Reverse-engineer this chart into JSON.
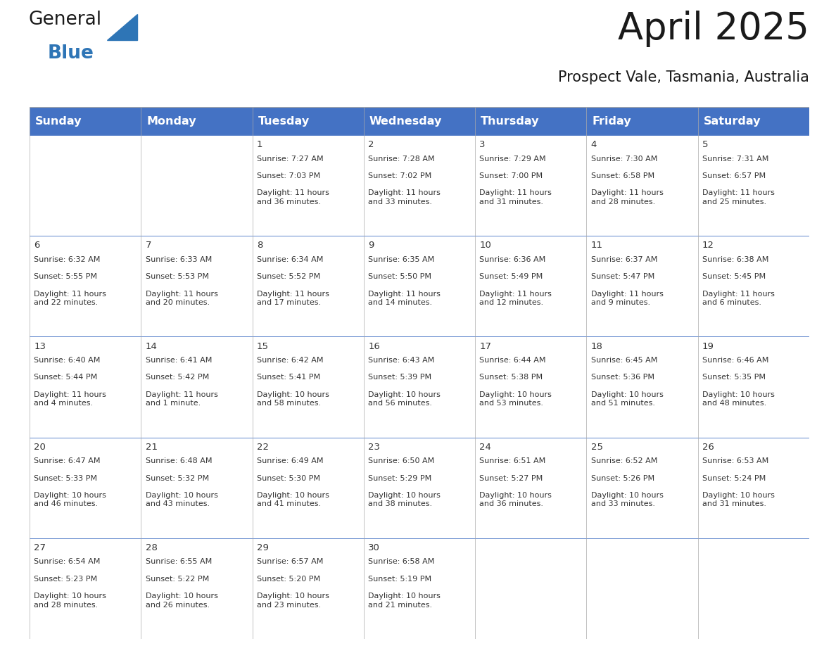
{
  "title": "April 2025",
  "subtitle": "Prospect Vale, Tasmania, Australia",
  "header_bg": "#4472C4",
  "header_text_color": "#FFFFFF",
  "cell_bg": "#FFFFFF",
  "cell_text_color": "#333333",
  "grid_color": "#AAAAAA",
  "days_of_week": [
    "Sunday",
    "Monday",
    "Tuesday",
    "Wednesday",
    "Thursday",
    "Friday",
    "Saturday"
  ],
  "triangle_color": "#2E75B6",
  "blue_text_color": "#2E75B6",
  "calendar_data": [
    [
      {
        "day": "",
        "sunrise": "",
        "sunset": "",
        "daylight": ""
      },
      {
        "day": "",
        "sunrise": "",
        "sunset": "",
        "daylight": ""
      },
      {
        "day": "1",
        "sunrise": "7:27 AM",
        "sunset": "7:03 PM",
        "daylight": "11 hours and 36 minutes."
      },
      {
        "day": "2",
        "sunrise": "7:28 AM",
        "sunset": "7:02 PM",
        "daylight": "11 hours and 33 minutes."
      },
      {
        "day": "3",
        "sunrise": "7:29 AM",
        "sunset": "7:00 PM",
        "daylight": "11 hours and 31 minutes."
      },
      {
        "day": "4",
        "sunrise": "7:30 AM",
        "sunset": "6:58 PM",
        "daylight": "11 hours and 28 minutes."
      },
      {
        "day": "5",
        "sunrise": "7:31 AM",
        "sunset": "6:57 PM",
        "daylight": "11 hours and 25 minutes."
      }
    ],
    [
      {
        "day": "6",
        "sunrise": "6:32 AM",
        "sunset": "5:55 PM",
        "daylight": "11 hours and 22 minutes."
      },
      {
        "day": "7",
        "sunrise": "6:33 AM",
        "sunset": "5:53 PM",
        "daylight": "11 hours and 20 minutes."
      },
      {
        "day": "8",
        "sunrise": "6:34 AM",
        "sunset": "5:52 PM",
        "daylight": "11 hours and 17 minutes."
      },
      {
        "day": "9",
        "sunrise": "6:35 AM",
        "sunset": "5:50 PM",
        "daylight": "11 hours and 14 minutes."
      },
      {
        "day": "10",
        "sunrise": "6:36 AM",
        "sunset": "5:49 PM",
        "daylight": "11 hours and 12 minutes."
      },
      {
        "day": "11",
        "sunrise": "6:37 AM",
        "sunset": "5:47 PM",
        "daylight": "11 hours and 9 minutes."
      },
      {
        "day": "12",
        "sunrise": "6:38 AM",
        "sunset": "5:45 PM",
        "daylight": "11 hours and 6 minutes."
      }
    ],
    [
      {
        "day": "13",
        "sunrise": "6:40 AM",
        "sunset": "5:44 PM",
        "daylight": "11 hours and 4 minutes."
      },
      {
        "day": "14",
        "sunrise": "6:41 AM",
        "sunset": "5:42 PM",
        "daylight": "11 hours and 1 minute."
      },
      {
        "day": "15",
        "sunrise": "6:42 AM",
        "sunset": "5:41 PM",
        "daylight": "10 hours and 58 minutes."
      },
      {
        "day": "16",
        "sunrise": "6:43 AM",
        "sunset": "5:39 PM",
        "daylight": "10 hours and 56 minutes."
      },
      {
        "day": "17",
        "sunrise": "6:44 AM",
        "sunset": "5:38 PM",
        "daylight": "10 hours and 53 minutes."
      },
      {
        "day": "18",
        "sunrise": "6:45 AM",
        "sunset": "5:36 PM",
        "daylight": "10 hours and 51 minutes."
      },
      {
        "day": "19",
        "sunrise": "6:46 AM",
        "sunset": "5:35 PM",
        "daylight": "10 hours and 48 minutes."
      }
    ],
    [
      {
        "day": "20",
        "sunrise": "6:47 AM",
        "sunset": "5:33 PM",
        "daylight": "10 hours and 46 minutes."
      },
      {
        "day": "21",
        "sunrise": "6:48 AM",
        "sunset": "5:32 PM",
        "daylight": "10 hours and 43 minutes."
      },
      {
        "day": "22",
        "sunrise": "6:49 AM",
        "sunset": "5:30 PM",
        "daylight": "10 hours and 41 minutes."
      },
      {
        "day": "23",
        "sunrise": "6:50 AM",
        "sunset": "5:29 PM",
        "daylight": "10 hours and 38 minutes."
      },
      {
        "day": "24",
        "sunrise": "6:51 AM",
        "sunset": "5:27 PM",
        "daylight": "10 hours and 36 minutes."
      },
      {
        "day": "25",
        "sunrise": "6:52 AM",
        "sunset": "5:26 PM",
        "daylight": "10 hours and 33 minutes."
      },
      {
        "day": "26",
        "sunrise": "6:53 AM",
        "sunset": "5:24 PM",
        "daylight": "10 hours and 31 minutes."
      }
    ],
    [
      {
        "day": "27",
        "sunrise": "6:54 AM",
        "sunset": "5:23 PM",
        "daylight": "10 hours and 28 minutes."
      },
      {
        "day": "28",
        "sunrise": "6:55 AM",
        "sunset": "5:22 PM",
        "daylight": "10 hours and 26 minutes."
      },
      {
        "day": "29",
        "sunrise": "6:57 AM",
        "sunset": "5:20 PM",
        "daylight": "10 hours and 23 minutes."
      },
      {
        "day": "30",
        "sunrise": "6:58 AM",
        "sunset": "5:19 PM",
        "daylight": "10 hours and 21 minutes."
      },
      {
        "day": "",
        "sunrise": "",
        "sunset": "",
        "daylight": ""
      },
      {
        "day": "",
        "sunrise": "",
        "sunset": "",
        "daylight": ""
      },
      {
        "day": "",
        "sunrise": "",
        "sunset": "",
        "daylight": ""
      }
    ]
  ]
}
